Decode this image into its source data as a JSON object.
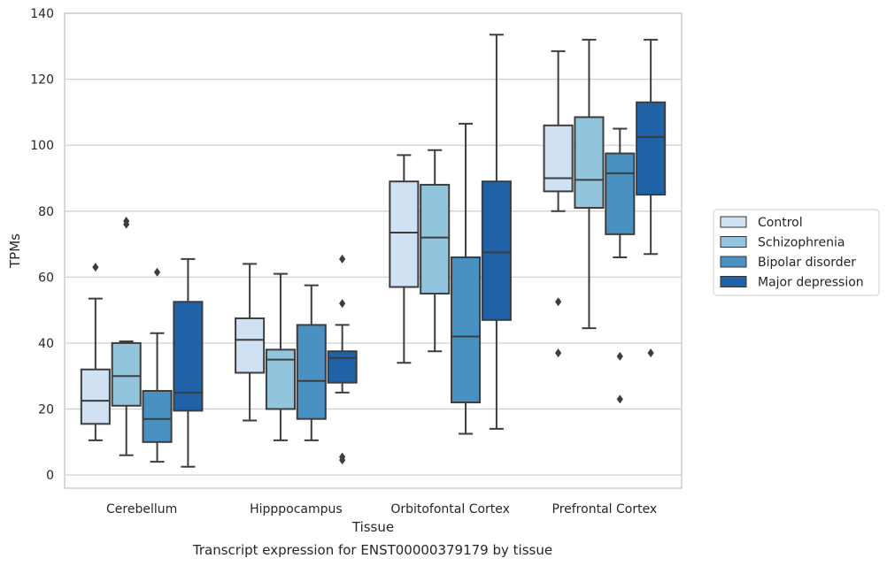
{
  "caption": "Transcript expression for ENST00000379179 by tissue",
  "chart_data": {
    "type": "box",
    "xlabel": "Tissue",
    "ylabel": "TPMs",
    "ylim": [
      -4,
      140
    ],
    "yticks": [
      0,
      20,
      40,
      60,
      80,
      100,
      120,
      140
    ],
    "grid": "horizontal",
    "legend_position": "right",
    "categories": [
      "Cerebellum",
      "Hipppocampus",
      "Orbitofontal Cortex",
      "Prefrontal Cortex"
    ],
    "series": [
      {
        "name": "Control",
        "color": "#cfe1f2",
        "boxes": [
          {
            "whislo": 10.5,
            "q1": 15.5,
            "med": 22.5,
            "q3": 32,
            "whishi": 53.5,
            "fliers": [
              63
            ]
          },
          {
            "whislo": 16.5,
            "q1": 31,
            "med": 41,
            "q3": 47.5,
            "whishi": 64,
            "fliers": []
          },
          {
            "whislo": 34,
            "q1": 57,
            "med": 73.5,
            "q3": 89,
            "whishi": 97,
            "fliers": []
          },
          {
            "whislo": 80,
            "q1": 86,
            "med": 90,
            "q3": 106,
            "whishi": 128.5,
            "fliers": [
              52.5,
              37
            ]
          }
        ]
      },
      {
        "name": "Schizophrenia",
        "color": "#93c4de",
        "boxes": [
          {
            "whislo": 6,
            "q1": 21,
            "med": 30,
            "q3": 40,
            "whishi": 40.5,
            "fliers": [
              77,
              76
            ]
          },
          {
            "whislo": 10.5,
            "q1": 20,
            "med": 35,
            "q3": 38,
            "whishi": 61,
            "fliers": []
          },
          {
            "whislo": 37.5,
            "q1": 55,
            "med": 72,
            "q3": 88,
            "whishi": 98.5,
            "fliers": []
          },
          {
            "whislo": 44.5,
            "q1": 81,
            "med": 89.5,
            "q3": 108.5,
            "whishi": 132,
            "fliers": []
          }
        ]
      },
      {
        "name": "Bipolar disorder",
        "color": "#4a91c3",
        "boxes": [
          {
            "whislo": 4,
            "q1": 10,
            "med": 17,
            "q3": 25.5,
            "whishi": 43,
            "fliers": [
              61.5
            ]
          },
          {
            "whislo": 10.5,
            "q1": 17,
            "med": 28.5,
            "q3": 45.5,
            "whishi": 57.5,
            "fliers": []
          },
          {
            "whislo": 12.5,
            "q1": 22,
            "med": 42,
            "q3": 66,
            "whishi": 106.5,
            "fliers": []
          },
          {
            "whislo": 66,
            "q1": 73,
            "med": 91.5,
            "q3": 97.5,
            "whishi": 105,
            "fliers": [
              36,
              23
            ]
          }
        ]
      },
      {
        "name": "Major depression",
        "color": "#1f62a7",
        "boxes": [
          {
            "whislo": 2.5,
            "q1": 19.5,
            "med": 25,
            "q3": 52.5,
            "whishi": 65.5,
            "fliers": []
          },
          {
            "whislo": 25,
            "q1": 28,
            "med": 35.5,
            "q3": 37.5,
            "whishi": 45.5,
            "fliers": [
              65.5,
              52,
              5.5,
              4.5
            ]
          },
          {
            "whislo": 14,
            "q1": 47,
            "med": 67.5,
            "q3": 89,
            "whishi": 133.5,
            "fliers": []
          },
          {
            "whislo": 67,
            "q1": 85,
            "med": 102.5,
            "q3": 113,
            "whishi": 132,
            "fliers": [
              37
            ]
          }
        ]
      }
    ]
  }
}
